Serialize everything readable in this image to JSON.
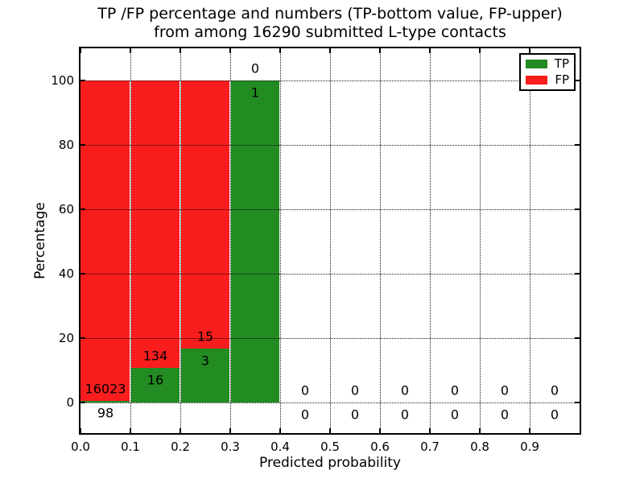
{
  "chart_data": {
    "type": "bar",
    "stacked": true,
    "orientation": "vertical",
    "title_line1": "TP /FP percentage and numbers (TP-bottom value, FP-upper)",
    "title_line2": "from among 16290 submitted L-type contacts",
    "xlabel": "Predicted probability",
    "ylabel": "Percentage",
    "total_contacts": 16290,
    "x_ticks": [
      {
        "value": 0.0,
        "label": "0.0"
      },
      {
        "value": 0.1,
        "label": "0.1"
      },
      {
        "value": 0.2,
        "label": "0.2"
      },
      {
        "value": 0.3,
        "label": "0.3"
      },
      {
        "value": 0.4,
        "label": "0.4"
      },
      {
        "value": 0.5,
        "label": "0.5"
      },
      {
        "value": 0.6,
        "label": "0.6"
      },
      {
        "value": 0.7,
        "label": "0.7"
      },
      {
        "value": 0.8,
        "label": "0.8"
      },
      {
        "value": 0.9,
        "label": "0.9"
      }
    ],
    "y_ticks": [
      {
        "value": 0,
        "label": "0"
      },
      {
        "value": 20,
        "label": "20"
      },
      {
        "value": 40,
        "label": "40"
      },
      {
        "value": 60,
        "label": "60"
      },
      {
        "value": 80,
        "label": "80"
      },
      {
        "value": 100,
        "label": "100"
      }
    ],
    "xlim": [
      0.0,
      1.0
    ],
    "ylim": [
      -9.5,
      109.5
    ],
    "grid": "dotted",
    "bins": [
      {
        "x_start": 0.0,
        "x_end": 0.1,
        "tp": 98,
        "fp": 16023
      },
      {
        "x_start": 0.1,
        "x_end": 0.2,
        "tp": 16,
        "fp": 134
      },
      {
        "x_start": 0.2,
        "x_end": 0.3,
        "tp": 3,
        "fp": 15
      },
      {
        "x_start": 0.3,
        "x_end": 0.4,
        "tp": 1,
        "fp": 0
      },
      {
        "x_start": 0.4,
        "x_end": 0.5,
        "tp": 0,
        "fp": 0
      },
      {
        "x_start": 0.5,
        "x_end": 0.6,
        "tp": 0,
        "fp": 0
      },
      {
        "x_start": 0.6,
        "x_end": 0.7,
        "tp": 0,
        "fp": 0
      },
      {
        "x_start": 0.7,
        "x_end": 0.8,
        "tp": 0,
        "fp": 0
      },
      {
        "x_start": 0.8,
        "x_end": 0.9,
        "tp": 0,
        "fp": 0
      },
      {
        "x_start": 0.9,
        "x_end": 1.0,
        "tp": 0,
        "fp": 0
      }
    ],
    "legend": {
      "position": "upper right",
      "entries": [
        {
          "label": "TP",
          "color": "#228B22"
        },
        {
          "label": "FP",
          "color": "#FA1D1D"
        }
      ]
    }
  },
  "colors": {
    "tp_green": "#228B22",
    "fp_red": "#FA1D1D",
    "axis": "#000000",
    "grid": "#000000",
    "background": "#FFFFFF",
    "text": "#000000"
  }
}
